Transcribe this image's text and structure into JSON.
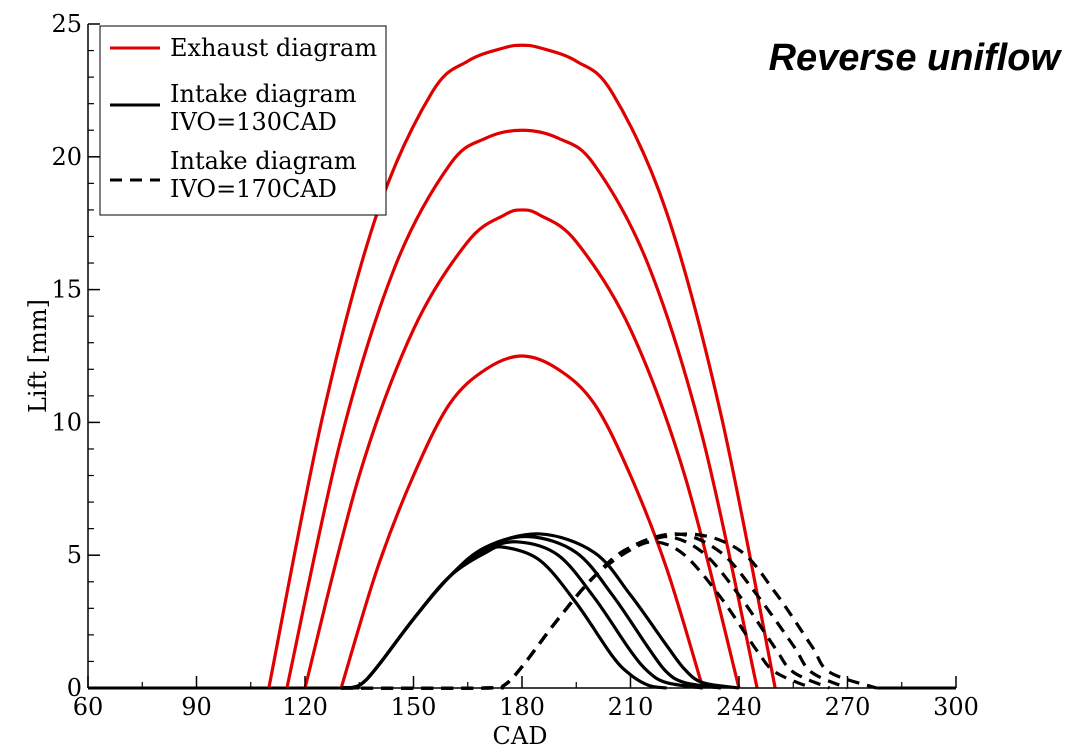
{
  "chart_data": {
    "type": "line",
    "title": "",
    "xlabel": "CAD",
    "ylabel": "Lift [mm]",
    "xlim": [
      60,
      300
    ],
    "ylim": [
      0,
      25
    ],
    "xticks": [
      60,
      90,
      120,
      150,
      180,
      210,
      240,
      270,
      300
    ],
    "xtick_labels": [
      "60",
      "90",
      "120",
      "150",
      "180",
      "210",
      "240",
      "270",
      "300"
    ],
    "yticks": [
      0,
      5,
      10,
      15,
      20,
      25
    ],
    "ytick_labels": [
      "0",
      "5",
      "10",
      "15",
      "20",
      "25"
    ],
    "grid": false,
    "legend_position": "top-left",
    "legend": [
      {
        "label": "Exhaust diagram",
        "style": "solid",
        "color": "#e00000"
      },
      {
        "label": "Intake diagram",
        "label2": "IVO=130CAD",
        "style": "solid",
        "color": "#000000"
      },
      {
        "label": "Intake diagram",
        "label2": "IVO=170CAD",
        "style": "dashed",
        "color": "#000000"
      }
    ],
    "annotation": "Reverse uniflow",
    "series": [
      {
        "group": "Exhaust diagram",
        "color": "#e00000",
        "dash": false,
        "x": [
          110,
          125,
          140,
          155,
          165,
          175,
          180,
          185,
          195,
          205,
          220,
          235,
          250
        ],
        "y": [
          0,
          10.3,
          17.9,
          22.4,
          23.6,
          24.1,
          24.2,
          24.1,
          23.6,
          22.4,
          17.9,
          10.3,
          0
        ]
      },
      {
        "group": "Exhaust diagram",
        "color": "#e00000",
        "dash": false,
        "x": [
          115,
          130,
          145,
          160,
          170,
          180,
          190,
          200,
          215,
          230,
          245
        ],
        "y": [
          0,
          9.4,
          15.9,
          19.7,
          20.7,
          21.0,
          20.7,
          19.7,
          15.9,
          9.4,
          0
        ]
      },
      {
        "group": "Exhaust diagram",
        "color": "#e00000",
        "dash": false,
        "x": [
          120,
          135,
          150,
          165,
          175,
          180,
          185,
          195,
          210,
          225,
          240
        ],
        "y": [
          0,
          8.0,
          13.5,
          16.8,
          17.8,
          18.0,
          17.8,
          16.8,
          13.5,
          8.0,
          0
        ]
      },
      {
        "group": "Exhaust diagram",
        "color": "#e00000",
        "dash": false,
        "x": [
          130,
          140,
          150,
          160,
          170,
          180,
          190,
          200,
          210,
          220,
          230
        ],
        "y": [
          0,
          4.5,
          8.0,
          10.7,
          12.0,
          12.5,
          12.0,
          10.7,
          8.0,
          4.5,
          0
        ]
      },
      {
        "group": "Intake diagram IVO=130CAD",
        "color": "#000000",
        "dash": false,
        "x": [
          130,
          135,
          140,
          150,
          160,
          170,
          175,
          185,
          195,
          205,
          210,
          215,
          220
        ],
        "y": [
          0,
          0.1,
          0.8,
          2.6,
          4.2,
          5.1,
          5.3,
          4.8,
          3.2,
          1.2,
          0.5,
          0.1,
          0
        ]
      },
      {
        "group": "Intake diagram IVO=130CAD",
        "color": "#000000",
        "dash": false,
        "x": [
          130,
          135,
          140,
          150,
          160,
          170,
          179,
          190,
          200,
          210,
          215,
          220,
          230
        ],
        "y": [
          0,
          0.1,
          0.8,
          2.6,
          4.2,
          5.2,
          5.5,
          5.0,
          3.4,
          1.4,
          0.6,
          0.2,
          0
        ]
      },
      {
        "group": "Intake diagram IVO=130CAD",
        "color": "#000000",
        "dash": false,
        "x": [
          130,
          135,
          140,
          150,
          160,
          170,
          182,
          195,
          205,
          215,
          220,
          225,
          235
        ],
        "y": [
          0,
          0.1,
          0.8,
          2.6,
          4.2,
          5.3,
          5.7,
          5.1,
          3.5,
          1.5,
          0.6,
          0.2,
          0
        ]
      },
      {
        "group": "Intake diagram IVO=130CAD",
        "color": "#000000",
        "dash": false,
        "x": [
          130,
          135,
          140,
          150,
          160,
          170,
          185,
          200,
          210,
          220,
          225,
          230,
          240
        ],
        "y": [
          0,
          0.1,
          0.8,
          2.6,
          4.2,
          5.3,
          5.8,
          5.1,
          3.5,
          1.6,
          0.7,
          0.2,
          0
        ]
      },
      {
        "group": "Intake diagram IVO=170CAD",
        "color": "#000000",
        "dash": true,
        "x": [
          130,
          170,
          175,
          180,
          190,
          200,
          210,
          217,
          225,
          235,
          245,
          250,
          260
        ],
        "y": [
          0,
          0,
          0.1,
          0.8,
          2.6,
          4.2,
          5.2,
          5.5,
          5.0,
          3.4,
          1.4,
          0.6,
          0
        ]
      },
      {
        "group": "Intake diagram IVO=170CAD",
        "color": "#000000",
        "dash": true,
        "x": [
          130,
          170,
          175,
          180,
          190,
          200,
          210,
          220,
          230,
          240,
          250,
          255,
          265
        ],
        "y": [
          0,
          0,
          0.1,
          0.8,
          2.6,
          4.2,
          5.3,
          5.7,
          5.1,
          3.5,
          1.5,
          0.6,
          0
        ]
      },
      {
        "group": "Intake diagram IVO=170CAD",
        "color": "#000000",
        "dash": true,
        "x": [
          130,
          170,
          175,
          180,
          190,
          200,
          210,
          223,
          235,
          245,
          255,
          260,
          270
        ],
        "y": [
          0,
          0,
          0.1,
          0.8,
          2.6,
          4.2,
          5.3,
          5.8,
          5.1,
          3.5,
          1.6,
          0.6,
          0
        ]
      },
      {
        "group": "Intake diagram IVO=170CAD",
        "color": "#000000",
        "dash": true,
        "x": [
          130,
          170,
          175,
          180,
          190,
          200,
          210,
          226,
          240,
          250,
          260,
          265,
          278
        ],
        "y": [
          0,
          0,
          0.1,
          0.8,
          2.6,
          4.2,
          5.3,
          5.8,
          5.2,
          3.6,
          1.6,
          0.6,
          0
        ]
      }
    ]
  }
}
